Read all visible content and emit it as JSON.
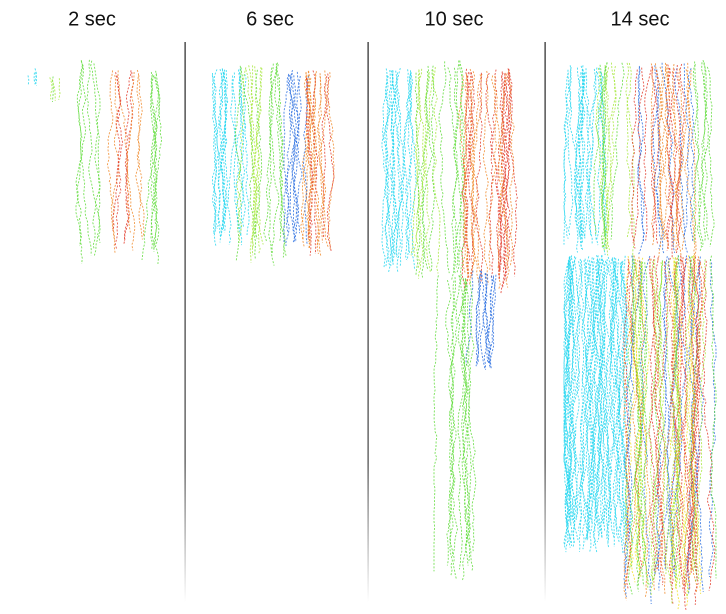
{
  "panels": [
    {
      "label": "2 sec"
    },
    {
      "label": "6 sec"
    },
    {
      "label": "10 sec"
    },
    {
      "label": "14 sec"
    }
  ]
}
